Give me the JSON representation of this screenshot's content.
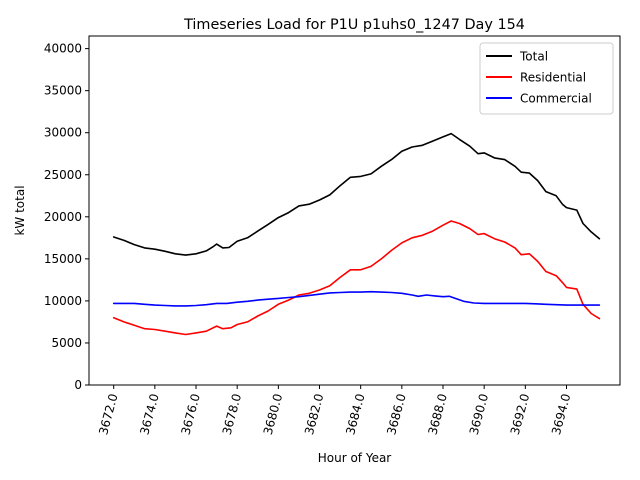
{
  "chart_data": {
    "type": "line",
    "title": "Timeseries Load for P1U p1uhs0_1247  Day 154",
    "xlabel": "Hour of Year",
    "ylabel": "kW total",
    "xlim": [
      3670.8,
      3696.6
    ],
    "ylim": [
      0,
      41500
    ],
    "xticks": [
      3672,
      3674,
      3676,
      3678,
      3680,
      3682,
      3684,
      3686,
      3688,
      3690,
      3692,
      3694
    ],
    "xtick_labels": [
      "3672.0",
      "3674.0",
      "3676.0",
      "3678.0",
      "3680.0",
      "3682.0",
      "3684.0",
      "3686.0",
      "3688.0",
      "3690.0",
      "3692.0",
      "3694.0"
    ],
    "yticks": [
      0,
      5000,
      10000,
      15000,
      20000,
      25000,
      30000,
      35000,
      40000
    ],
    "ytick_labels": [
      "0",
      "5000",
      "10000",
      "15000",
      "20000",
      "25000",
      "30000",
      "35000",
      "40000"
    ],
    "legend_position": "top-right",
    "grid": false,
    "series": [
      {
        "name": "Total",
        "color": "#000000",
        "points": [
          [
            3672.0,
            17600
          ],
          [
            3672.5,
            17200
          ],
          [
            3673.0,
            16700
          ],
          [
            3673.5,
            16300
          ],
          [
            3674.0,
            16150
          ],
          [
            3674.5,
            15900
          ],
          [
            3675.0,
            15600
          ],
          [
            3675.5,
            15450
          ],
          [
            3676.0,
            15600
          ],
          [
            3676.5,
            15950
          ],
          [
            3676.8,
            16400
          ],
          [
            3677.0,
            16750
          ],
          [
            3677.3,
            16300
          ],
          [
            3677.6,
            16350
          ],
          [
            3678.0,
            17100
          ],
          [
            3678.5,
            17500
          ],
          [
            3679.0,
            18300
          ],
          [
            3679.5,
            19100
          ],
          [
            3680.0,
            19900
          ],
          [
            3680.5,
            20500
          ],
          [
            3681.0,
            21300
          ],
          [
            3681.5,
            21500
          ],
          [
            3682.0,
            22000
          ],
          [
            3682.5,
            22600
          ],
          [
            3683.0,
            23700
          ],
          [
            3683.5,
            24700
          ],
          [
            3684.0,
            24800
          ],
          [
            3684.5,
            25100
          ],
          [
            3685.0,
            26000
          ],
          [
            3685.5,
            26800
          ],
          [
            3686.0,
            27800
          ],
          [
            3686.5,
            28300
          ],
          [
            3687.0,
            28500
          ],
          [
            3687.5,
            29000
          ],
          [
            3688.0,
            29500
          ],
          [
            3688.4,
            29900
          ],
          [
            3688.8,
            29200
          ],
          [
            3689.3,
            28400
          ],
          [
            3689.7,
            27500
          ],
          [
            3690.0,
            27600
          ],
          [
            3690.5,
            27000
          ],
          [
            3691.0,
            26800
          ],
          [
            3691.5,
            26000
          ],
          [
            3691.8,
            25300
          ],
          [
            3692.2,
            25200
          ],
          [
            3692.6,
            24300
          ],
          [
            3693.0,
            23000
          ],
          [
            3693.5,
            22500
          ],
          [
            3693.8,
            21500
          ],
          [
            3694.0,
            21100
          ],
          [
            3694.5,
            20800
          ],
          [
            3694.8,
            19200
          ],
          [
            3695.2,
            18200
          ],
          [
            3695.6,
            17400
          ]
        ]
      },
      {
        "name": "Residential",
        "color": "#ff0000",
        "points": [
          [
            3672.0,
            8000
          ],
          [
            3672.5,
            7500
          ],
          [
            3673.0,
            7100
          ],
          [
            3673.5,
            6700
          ],
          [
            3674.0,
            6600
          ],
          [
            3674.5,
            6400
          ],
          [
            3675.0,
            6200
          ],
          [
            3675.5,
            6000
          ],
          [
            3676.0,
            6200
          ],
          [
            3676.5,
            6400
          ],
          [
            3677.0,
            7000
          ],
          [
            3677.3,
            6700
          ],
          [
            3677.7,
            6800
          ],
          [
            3678.0,
            7200
          ],
          [
            3678.5,
            7500
          ],
          [
            3679.0,
            8200
          ],
          [
            3679.5,
            8800
          ],
          [
            3680.0,
            9600
          ],
          [
            3680.5,
            10100
          ],
          [
            3681.0,
            10700
          ],
          [
            3681.5,
            10900
          ],
          [
            3682.0,
            11300
          ],
          [
            3682.5,
            11800
          ],
          [
            3683.0,
            12800
          ],
          [
            3683.5,
            13700
          ],
          [
            3684.0,
            13700
          ],
          [
            3684.5,
            14100
          ],
          [
            3685.0,
            15000
          ],
          [
            3685.5,
            16000
          ],
          [
            3686.0,
            16900
          ],
          [
            3686.5,
            17500
          ],
          [
            3687.0,
            17800
          ],
          [
            3687.5,
            18300
          ],
          [
            3688.0,
            19000
          ],
          [
            3688.4,
            19500
          ],
          [
            3688.8,
            19200
          ],
          [
            3689.3,
            18600
          ],
          [
            3689.7,
            17900
          ],
          [
            3690.0,
            18000
          ],
          [
            3690.5,
            17400
          ],
          [
            3691.0,
            17000
          ],
          [
            3691.5,
            16300
          ],
          [
            3691.8,
            15500
          ],
          [
            3692.2,
            15600
          ],
          [
            3692.6,
            14700
          ],
          [
            3693.0,
            13500
          ],
          [
            3693.5,
            13000
          ],
          [
            3693.8,
            12200
          ],
          [
            3694.0,
            11600
          ],
          [
            3694.5,
            11400
          ],
          [
            3694.8,
            9600
          ],
          [
            3695.2,
            8500
          ],
          [
            3695.6,
            7900
          ]
        ]
      },
      {
        "name": "Commercial",
        "color": "#0000ff",
        "points": [
          [
            3672.0,
            9700
          ],
          [
            3672.5,
            9700
          ],
          [
            3673.0,
            9700
          ],
          [
            3673.5,
            9600
          ],
          [
            3674.0,
            9500
          ],
          [
            3674.5,
            9450
          ],
          [
            3675.0,
            9400
          ],
          [
            3675.5,
            9400
          ],
          [
            3676.0,
            9450
          ],
          [
            3676.5,
            9550
          ],
          [
            3677.0,
            9700
          ],
          [
            3677.5,
            9700
          ],
          [
            3678.0,
            9850
          ],
          [
            3678.5,
            9950
          ],
          [
            3679.0,
            10100
          ],
          [
            3679.5,
            10200
          ],
          [
            3680.0,
            10300
          ],
          [
            3680.5,
            10400
          ],
          [
            3681.0,
            10500
          ],
          [
            3681.5,
            10650
          ],
          [
            3682.0,
            10800
          ],
          [
            3682.5,
            10950
          ],
          [
            3683.0,
            11000
          ],
          [
            3683.5,
            11050
          ],
          [
            3684.0,
            11050
          ],
          [
            3684.5,
            11100
          ],
          [
            3685.0,
            11050
          ],
          [
            3685.5,
            11000
          ],
          [
            3686.0,
            10900
          ],
          [
            3686.5,
            10700
          ],
          [
            3686.8,
            10550
          ],
          [
            3687.2,
            10700
          ],
          [
            3687.6,
            10600
          ],
          [
            3688.0,
            10500
          ],
          [
            3688.3,
            10550
          ],
          [
            3688.6,
            10300
          ],
          [
            3689.0,
            9950
          ],
          [
            3689.5,
            9750
          ],
          [
            3690.0,
            9700
          ],
          [
            3690.5,
            9700
          ],
          [
            3691.0,
            9700
          ],
          [
            3691.5,
            9700
          ],
          [
            3692.0,
            9700
          ],
          [
            3692.5,
            9650
          ],
          [
            3693.0,
            9600
          ],
          [
            3693.5,
            9550
          ],
          [
            3694.0,
            9500
          ],
          [
            3694.5,
            9500
          ],
          [
            3695.0,
            9500
          ],
          [
            3695.6,
            9500
          ]
        ]
      }
    ]
  }
}
